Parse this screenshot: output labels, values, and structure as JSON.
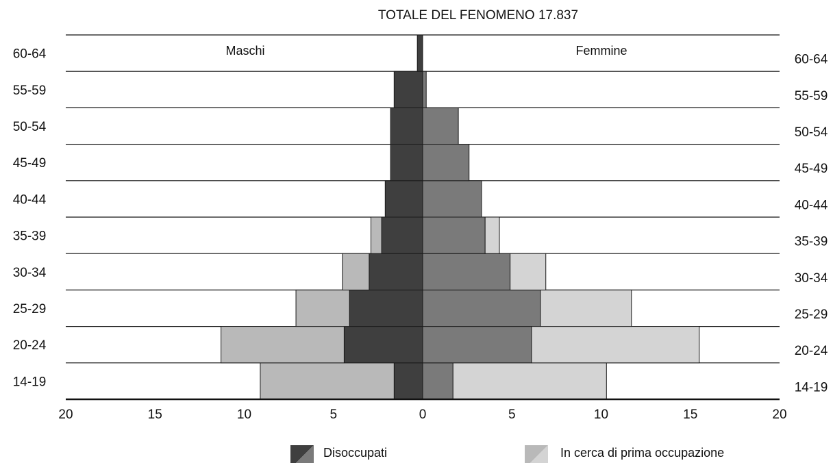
{
  "chart_data": {
    "type": "bar",
    "title": "TOTALE DEL FENOMENO 17.837",
    "side_labels": {
      "left": "Maschi",
      "right": "Femmine"
    },
    "categories": [
      "14-19",
      "20-24",
      "25-29",
      "30-34",
      "35-39",
      "40-44",
      "45-49",
      "50-54",
      "55-59",
      "60-64"
    ],
    "series": [
      {
        "name": "Disoccupati",
        "group": "Maschi",
        "values": [
          1.6,
          4.4,
          4.1,
          3.0,
          2.3,
          2.1,
          1.8,
          1.8,
          1.6,
          0.3
        ]
      },
      {
        "name": "In cerca di prima occupazione",
        "group": "Maschi",
        "values": [
          7.5,
          6.9,
          3.0,
          1.5,
          0.6,
          0,
          0,
          0,
          0,
          0
        ]
      },
      {
        "name": "Disoccupati",
        "group": "Femmine",
        "values": [
          1.7,
          6.1,
          6.6,
          4.9,
          3.5,
          3.3,
          2.6,
          2.0,
          0.2,
          0
        ]
      },
      {
        "name": "In cerca di prima occupazione",
        "group": "Femmine",
        "values": [
          8.6,
          9.4,
          5.1,
          2.0,
          0.8,
          0,
          0,
          0,
          0,
          0
        ]
      }
    ],
    "xlim": [
      -20,
      20
    ],
    "x_ticks": [
      "20",
      "15",
      "10",
      "5",
      "0",
      "5",
      "10",
      "15",
      "20"
    ],
    "legend": {
      "position": "bottom",
      "items": [
        {
          "label": "Disoccupati",
          "colors": {
            "male": "#3f3f3f",
            "female": "#7a7a7a"
          }
        },
        {
          "label": "In cerca di prima occupazione",
          "colors": {
            "male": "#b9b9b9",
            "female": "#d4d4d4"
          }
        }
      ]
    }
  }
}
